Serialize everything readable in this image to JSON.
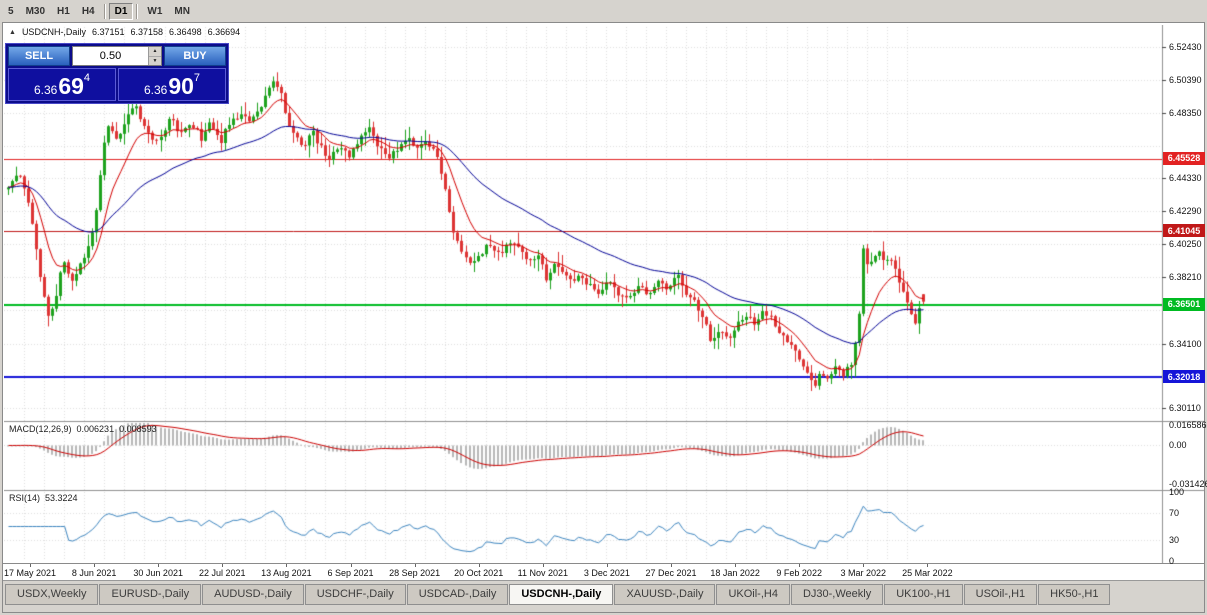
{
  "icons": {
    "chart_marker": "▲",
    "spin_up": "▲",
    "spin_down": "▼"
  },
  "toolbar": {
    "timeframes": [
      {
        "label": "5",
        "active": false
      },
      {
        "label": "M30",
        "active": false
      },
      {
        "label": "H1",
        "active": false
      },
      {
        "label": "H4",
        "active": false
      },
      {
        "label": "D1",
        "active": true
      },
      {
        "label": "W1",
        "active": false
      },
      {
        "label": "MN",
        "active": false
      }
    ],
    "separators_before": [
      4,
      5
    ]
  },
  "chart": {
    "title": "USDCNH-,Daily",
    "ohlc": {
      "open": "6.37151",
      "high": "6.37158",
      "low": "6.36498",
      "close": "6.36694"
    }
  },
  "trade_panel": {
    "sell_label": "SELL",
    "buy_label": "BUY",
    "volume": "0.50",
    "bid": {
      "prefix": "6.36",
      "main": "69",
      "sup": "4"
    },
    "ask": {
      "prefix": "6.36",
      "main": "90",
      "sup": "7"
    }
  },
  "price_axis": {
    "ticks": [
      "6.52430",
      "6.50390",
      "6.48350",
      "6.44330",
      "6.42290",
      "6.40250",
      "6.38210",
      "6.34100",
      "6.30110"
    ]
  },
  "levels": [
    {
      "name": "resistance-upper",
      "value": 6.45528,
      "label": "6.45528",
      "color": "#e22222",
      "width": 1
    },
    {
      "name": "resistance-mid",
      "value": 6.41045,
      "label": "6.41045",
      "color": "#c01818",
      "width": 1
    },
    {
      "name": "support-current",
      "value": 6.36501,
      "label": "6.36501",
      "color": "#00bb22",
      "width": 2
    },
    {
      "name": "support-lower",
      "value": 6.32018,
      "label": "6.32018",
      "color": "#1515d8",
      "width": 2
    }
  ],
  "indicators": {
    "macd": {
      "name": "MACD(12,26,9)",
      "value": "0.006231",
      "signal": "0.008593",
      "axis": [
        {
          "label": "0.016586",
          "value": 0.016586
        },
        {
          "label": "0.00",
          "value": 0
        },
        {
          "label": "-0.031426",
          "value": -0.031426
        }
      ]
    },
    "rsi": {
      "name": "RSI(14)",
      "value": "53.3224",
      "axis": [
        {
          "label": "100",
          "value": 100
        },
        {
          "label": "70",
          "value": 70
        },
        {
          "label": "30",
          "value": 30
        },
        {
          "label": "0",
          "value": 0
        }
      ]
    }
  },
  "date_axis": [
    "17 May 2021",
    "8 Jun 2021",
    "30 Jun 2021",
    "22 Jul 2021",
    "13 Aug 2021",
    "6 Sep 2021",
    "28 Sep 2021",
    "20 Oct 2021",
    "11 Nov 2021",
    "3 Dec 2021",
    "27 Dec 2021",
    "18 Jan 2022",
    "9 Feb 2022",
    "3 Mar 2022",
    "25 Mar 2022"
  ],
  "tabs": [
    {
      "label": "USDX,Weekly",
      "active": false
    },
    {
      "label": "EURUSD-,Daily",
      "active": false
    },
    {
      "label": "AUDUSD-,Daily",
      "active": false
    },
    {
      "label": "USDCHF-,Daily",
      "active": false
    },
    {
      "label": "USDCAD-,Daily",
      "active": false
    },
    {
      "label": "USDCNH-,Daily",
      "active": true
    },
    {
      "label": "XAUUSD-,Daily",
      "active": false
    },
    {
      "label": "UKOil-,H4",
      "active": false
    },
    {
      "label": "DJ30-,Weekly",
      "active": false
    },
    {
      "label": "UK100-,H1",
      "active": false
    },
    {
      "label": "USOil-,H1",
      "active": false
    },
    {
      "label": "HK50-,H1",
      "active": false
    }
  ],
  "chart_data": {
    "type": "candlestick",
    "symbol": "USDCNH-",
    "timeframe": "Daily",
    "candle_count": 229,
    "last_ohlc": {
      "open": 6.37151,
      "high": 6.37158,
      "low": 6.36498,
      "close": 6.36694
    },
    "price_axis_range": [
      6.2944,
      6.5367
    ],
    "macd_range": [
      -0.035,
      0.0185
    ],
    "rsi_range": [
      0,
      100
    ],
    "grid_values": [
      6.5243,
      6.5039,
      6.4835,
      6.4631,
      6.4433,
      6.4229,
      6.4025,
      6.3821,
      6.3617,
      6.341,
      6.3206,
      6.3011
    ],
    "colors": {
      "up": "#1ea21e",
      "down": "#dd3434",
      "ma_fast": "#d40000",
      "ma_slow": "#000096",
      "macd_hist": "#b8b8b8",
      "macd_signal": "#cc0000",
      "rsi_line": "#3e86c0"
    },
    "close_path": [
      [
        0.0,
        6.437
      ],
      [
        0.01,
        6.448
      ],
      [
        0.022,
        6.428
      ],
      [
        0.03,
        6.404
      ],
      [
        0.038,
        6.372
      ],
      [
        0.044,
        6.359
      ],
      [
        0.052,
        6.368
      ],
      [
        0.06,
        6.392
      ],
      [
        0.068,
        6.38
      ],
      [
        0.078,
        6.388
      ],
      [
        0.088,
        6.4
      ],
      [
        0.095,
        6.413
      ],
      [
        0.102,
        6.452
      ],
      [
        0.109,
        6.477
      ],
      [
        0.118,
        6.465
      ],
      [
        0.128,
        6.479
      ],
      [
        0.14,
        6.487
      ],
      [
        0.152,
        6.47
      ],
      [
        0.165,
        6.466
      ],
      [
        0.177,
        6.481
      ],
      [
        0.188,
        6.47
      ],
      [
        0.199,
        6.479
      ],
      [
        0.21,
        6.468
      ],
      [
        0.221,
        6.477
      ],
      [
        0.232,
        6.466
      ],
      [
        0.243,
        6.479
      ],
      [
        0.254,
        6.483
      ],
      [
        0.265,
        6.478
      ],
      [
        0.275,
        6.487
      ],
      [
        0.283,
        6.494
      ],
      [
        0.29,
        6.504
      ],
      [
        0.297,
        6.497
      ],
      [
        0.305,
        6.479
      ],
      [
        0.314,
        6.468
      ],
      [
        0.323,
        6.461
      ],
      [
        0.332,
        6.472
      ],
      [
        0.341,
        6.463
      ],
      [
        0.352,
        6.455
      ],
      [
        0.362,
        6.463
      ],
      [
        0.373,
        6.456
      ],
      [
        0.384,
        6.468
      ],
      [
        0.394,
        6.476
      ],
      [
        0.405,
        6.463
      ],
      [
        0.416,
        6.455
      ],
      [
        0.427,
        6.462
      ],
      [
        0.438,
        6.469
      ],
      [
        0.449,
        6.461
      ],
      [
        0.459,
        6.466
      ],
      [
        0.47,
        6.456
      ],
      [
        0.479,
        6.432
      ],
      [
        0.488,
        6.406
      ],
      [
        0.497,
        6.396
      ],
      [
        0.506,
        6.389
      ],
      [
        0.515,
        6.396
      ],
      [
        0.526,
        6.403
      ],
      [
        0.536,
        6.396
      ],
      [
        0.547,
        6.406
      ],
      [
        0.558,
        6.399
      ],
      [
        0.568,
        6.392
      ],
      [
        0.579,
        6.396
      ],
      [
        0.588,
        6.381
      ],
      [
        0.597,
        6.391
      ],
      [
        0.606,
        6.386
      ],
      [
        0.617,
        6.379
      ],
      [
        0.627,
        6.383
      ],
      [
        0.636,
        6.376
      ],
      [
        0.646,
        6.372
      ],
      [
        0.656,
        6.378
      ],
      [
        0.667,
        6.371
      ],
      [
        0.677,
        6.368
      ],
      [
        0.688,
        6.376
      ],
      [
        0.699,
        6.371
      ],
      [
        0.71,
        6.379
      ],
      [
        0.721,
        6.373
      ],
      [
        0.731,
        6.383
      ],
      [
        0.742,
        6.371
      ],
      [
        0.752,
        6.366
      ],
      [
        0.762,
        6.353
      ],
      [
        0.77,
        6.341
      ],
      [
        0.779,
        6.348
      ],
      [
        0.788,
        6.344
      ],
      [
        0.797,
        6.353
      ],
      [
        0.807,
        6.359
      ],
      [
        0.816,
        6.353
      ],
      [
        0.825,
        6.361
      ],
      [
        0.834,
        6.356
      ],
      [
        0.843,
        6.349
      ],
      [
        0.852,
        6.342
      ],
      [
        0.861,
        6.334
      ],
      [
        0.87,
        6.325
      ],
      [
        0.879,
        6.314
      ],
      [
        0.887,
        6.322
      ],
      [
        0.896,
        6.318
      ],
      [
        0.905,
        6.326
      ],
      [
        0.913,
        6.321
      ],
      [
        0.922,
        6.331
      ],
      [
        0.929,
        6.349
      ],
      [
        0.933,
        6.403
      ],
      [
        0.938,
        6.388
      ],
      [
        0.944,
        6.393
      ],
      [
        0.95,
        6.399
      ],
      [
        0.957,
        6.391
      ],
      [
        0.963,
        6.396
      ],
      [
        0.97,
        6.386
      ],
      [
        0.977,
        6.374
      ],
      [
        0.983,
        6.366
      ],
      [
        0.99,
        6.35
      ],
      [
        0.995,
        6.36
      ],
      [
        1.0,
        6.367
      ]
    ]
  }
}
